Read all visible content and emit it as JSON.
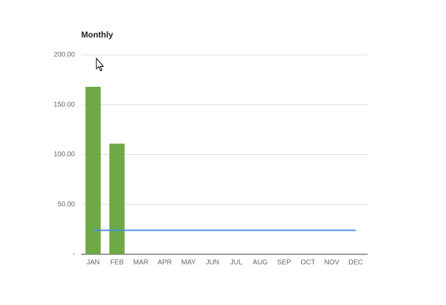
{
  "chart_data": {
    "type": "bar",
    "title": "Monthly",
    "categories": [
      "JAN",
      "FEB",
      "MAR",
      "APR",
      "MAY",
      "JUN",
      "JUL",
      "AUG",
      "SEP",
      "OCT",
      "NOV",
      "DEC"
    ],
    "series": [
      {
        "type": "bar",
        "color": "#6ea847",
        "values": [
          168,
          111,
          null,
          null,
          null,
          null,
          null,
          null,
          null,
          null,
          null,
          null
        ]
      },
      {
        "type": "line",
        "color": "#4a8ee0",
        "values": [
          24,
          24,
          24,
          24,
          24,
          24,
          24,
          24,
          24,
          24,
          24,
          24
        ]
      }
    ],
    "ylim": [
      0,
      200
    ],
    "yticks": [
      {
        "value": 0,
        "label": "-"
      },
      {
        "value": 50,
        "label": "50.00"
      },
      {
        "value": 100,
        "label": "100.00"
      },
      {
        "value": 150,
        "label": "150.00"
      },
      {
        "value": 200,
        "label": "200.00"
      }
    ],
    "grid": true
  }
}
